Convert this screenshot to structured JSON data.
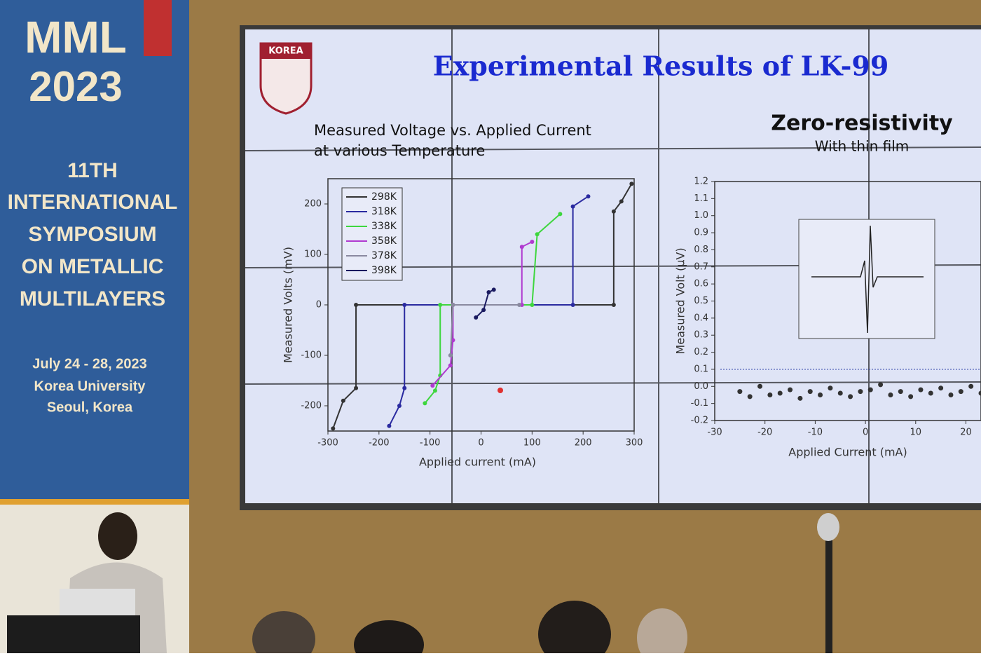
{
  "banner": {
    "acronym": "MML",
    "year": "2023",
    "edition": "11TH",
    "name_lines": [
      "INTERNATIONAL",
      "SYMPOSIUM",
      "ON METALLIC",
      "MULTILAYERS"
    ],
    "dates": "July 24 - 28, 2023",
    "venue": "Korea University",
    "city": "Seoul, Korea"
  },
  "slide": {
    "logo": "KOREA",
    "title": "Experimental Results of LK-99"
  },
  "chart_data": [
    {
      "type": "line",
      "title": [
        "Measured Voltage vs. Applied Current",
        "at various Temperature"
      ],
      "x_label": "Applied current (mA)",
      "y_label": "Measured Volts (mV)",
      "xlim": [
        -300,
        300
      ],
      "xticks": [
        -300,
        -200,
        -100,
        0,
        100,
        200,
        300
      ],
      "ylim": [
        -250,
        250
      ],
      "yticks": [
        -200,
        -100,
        0,
        100,
        200
      ],
      "legend": "upper left",
      "series": [
        {
          "name": "298K",
          "color": "#333333",
          "x": [
            -290,
            -270,
            -245,
            -245,
            260,
            260,
            275,
            295
          ],
          "values": [
            -245,
            -190,
            -165,
            0,
            0,
            185,
            205,
            240
          ]
        },
        {
          "name": "318K",
          "color": "#2a2aa0",
          "x": [
            -180,
            -160,
            -150,
            -150,
            180,
            180,
            210
          ],
          "values": [
            -240,
            -200,
            -165,
            0,
            0,
            195,
            215
          ]
        },
        {
          "name": "338K",
          "color": "#3ed63e",
          "x": [
            -110,
            -90,
            -80,
            -80,
            100,
            110,
            155
          ],
          "values": [
            -195,
            -170,
            -140,
            0,
            0,
            140,
            180
          ]
        },
        {
          "name": "358K",
          "color": "#b03ad0",
          "x": [
            -95,
            -60,
            -55,
            -55,
            80,
            80,
            100
          ],
          "values": [
            -160,
            -120,
            -70,
            0,
            0,
            115,
            125
          ]
        },
        {
          "name": "378K",
          "color": "#8a8aa0",
          "x": [
            -60,
            -55,
            75
          ],
          "values": [
            -100,
            0,
            0
          ]
        },
        {
          "name": "398K",
          "color": "#1a1a60",
          "x": [
            -10,
            5,
            15,
            25
          ],
          "values": [
            -25,
            -10,
            25,
            30
          ]
        }
      ]
    },
    {
      "type": "scatter",
      "title": "Zero-resistivity",
      "subtitle": "With thin film",
      "x_label": "Applied Current (mA)",
      "y_label": "Measured Volt (μV)",
      "xlim": [
        -30,
        23
      ],
      "xticks": [
        -30,
        -20,
        -10,
        0,
        10,
        20
      ],
      "ylim": [
        -0.2,
        1.2
      ],
      "yticks": [
        -0.2,
        -0.1,
        {
          "value": 0,
          "label": "0.0"
        },
        0.1,
        0.2,
        0.3,
        0.4,
        0.5,
        0.6,
        0.7,
        0.8,
        0.9,
        {
          "value": 1,
          "label": "1.0"
        },
        1.1,
        1.2
      ],
      "series": [
        {
          "color": "#333333",
          "x": [
            -25,
            -23,
            -21,
            -19,
            -17,
            -15,
            -13,
            -11,
            -9,
            -7,
            -5,
            -3,
            -1,
            1,
            3,
            5,
            7,
            9,
            11,
            13,
            15,
            17,
            19,
            21,
            23
          ],
          "values": [
            -0.03,
            -0.06,
            0.0,
            -0.05,
            -0.04,
            -0.02,
            -0.07,
            -0.03,
            -0.05,
            -0.01,
            -0.04,
            -0.06,
            -0.03,
            -0.02,
            0.01,
            -0.05,
            -0.03,
            -0.06,
            -0.02,
            -0.04,
            -0.01,
            -0.05,
            -0.03,
            0.0,
            -0.04
          ]
        }
      ]
    }
  ]
}
